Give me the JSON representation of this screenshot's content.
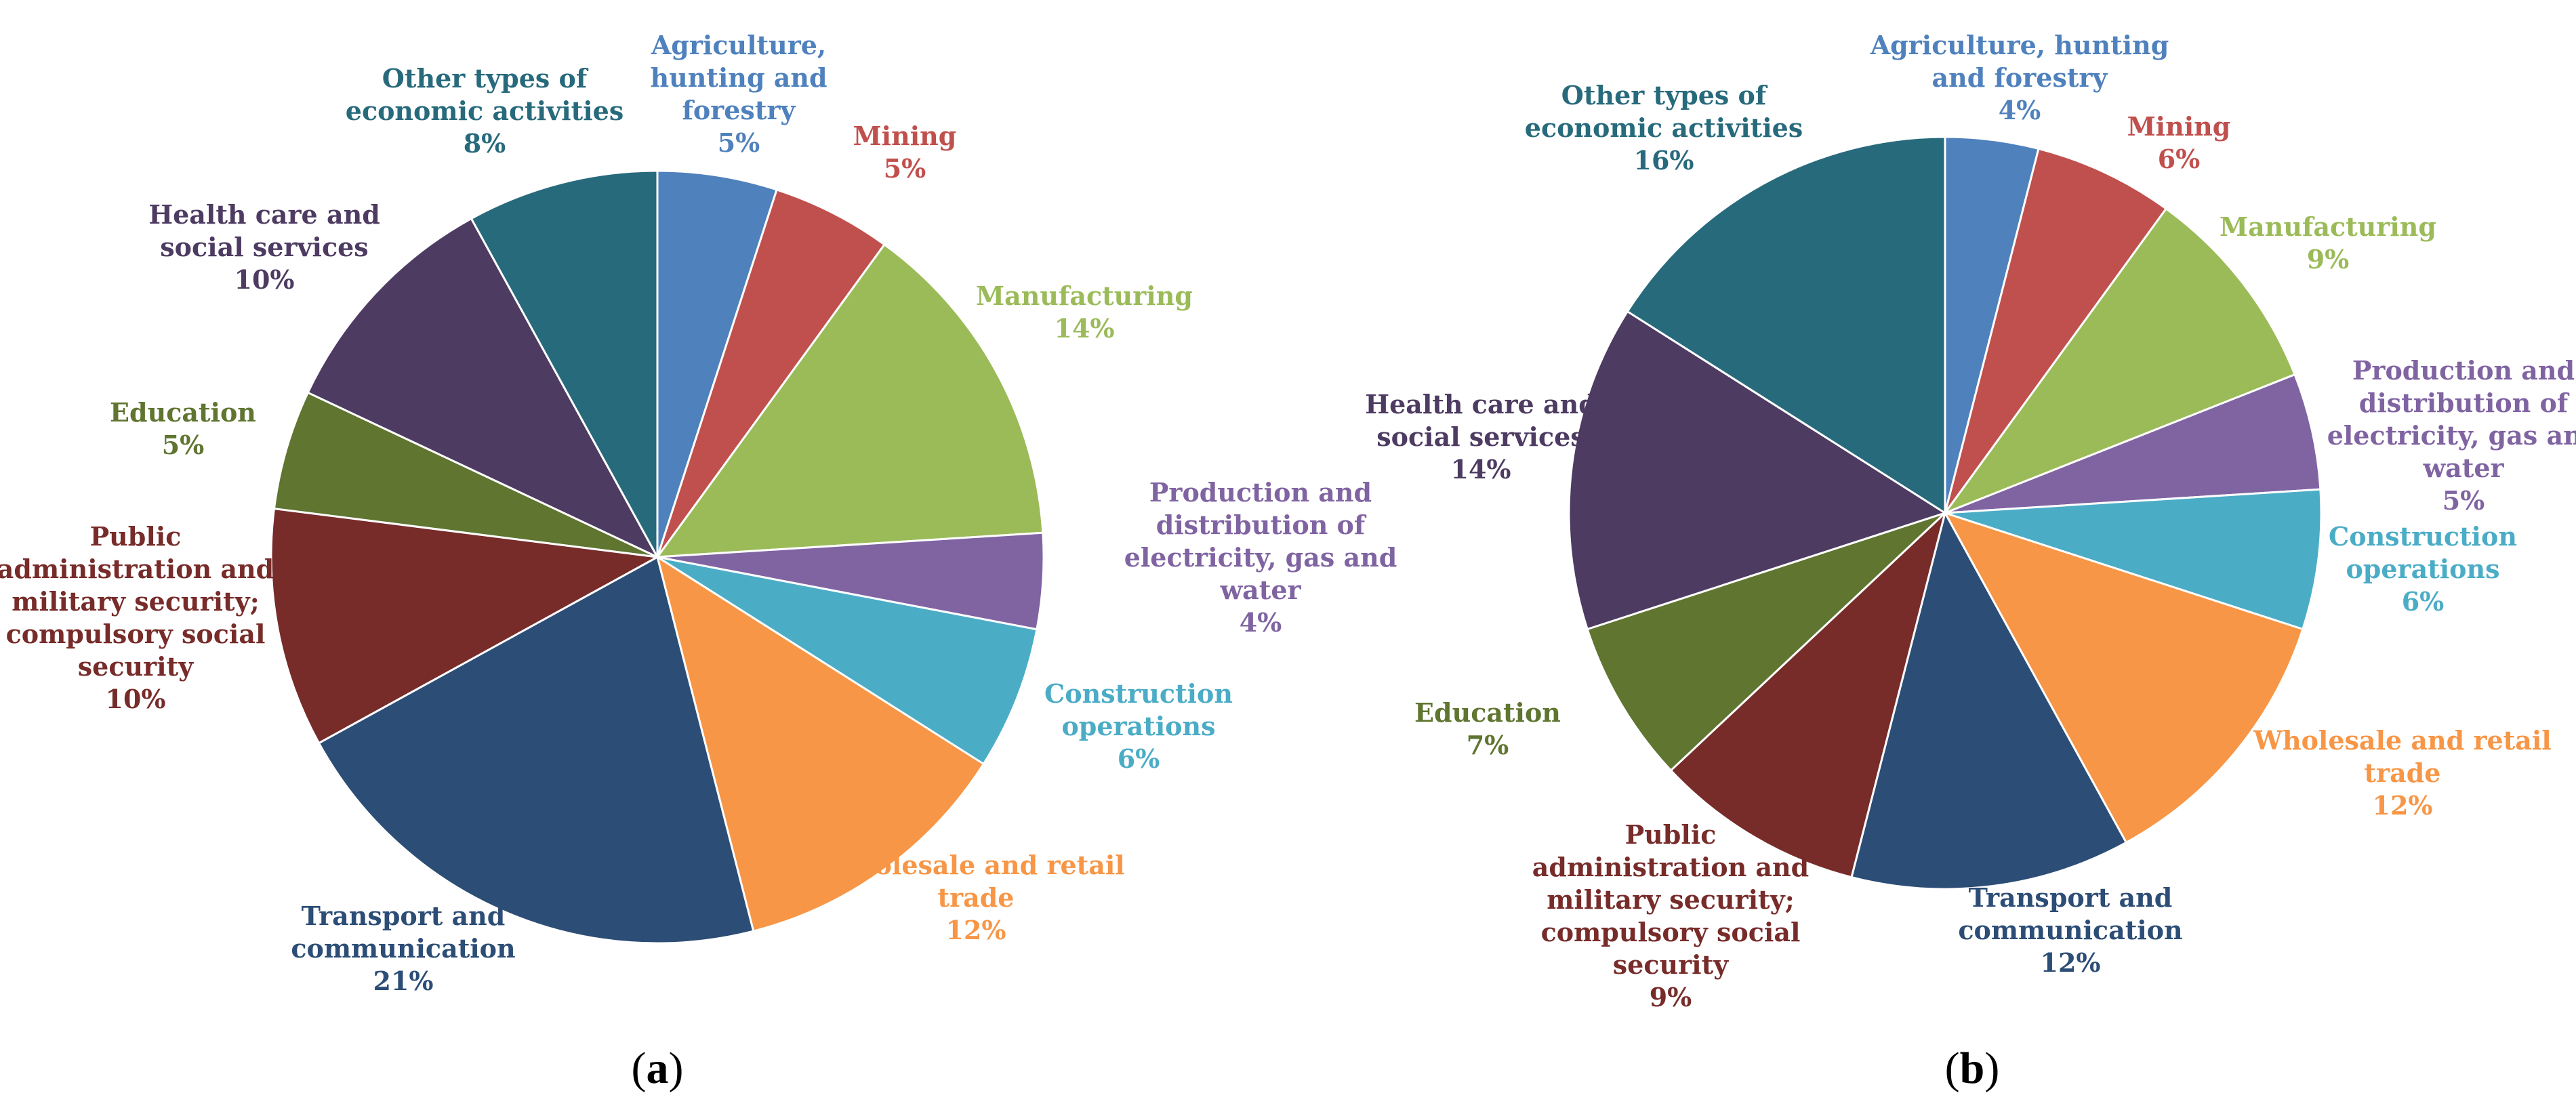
{
  "chart_data": [
    {
      "type": "pie",
      "panel_label": "(a)",
      "start": "12 o'clock",
      "direction": "clockwise",
      "slices": [
        {
          "label": [
            "Agriculture,",
            "hunting and",
            "forestry"
          ],
          "value": 5,
          "value_label": "5%",
          "color": "#4F81BD"
        },
        {
          "label": [
            "Mining"
          ],
          "value": 5,
          "value_label": "5%",
          "color": "#C0504D"
        },
        {
          "label": [
            "Manufacturing"
          ],
          "value": 14,
          "value_label": "14%",
          "color": "#9BBB59"
        },
        {
          "label": [
            "Production and",
            "distribution of",
            "electricity, gas and",
            "water"
          ],
          "value": 4,
          "value_label": "4%",
          "color": "#8064A2"
        },
        {
          "label": [
            "Construction",
            "operations"
          ],
          "value": 6,
          "value_label": "6%",
          "color": "#4BACC6"
        },
        {
          "label": [
            "Wholesale and retail",
            "trade"
          ],
          "value": 12,
          "value_label": "12%",
          "color": "#F79646"
        },
        {
          "label": [
            "Transport and",
            "communication"
          ],
          "value": 21,
          "value_label": "21%",
          "color": "#2C4D75"
        },
        {
          "label": [
            "Public",
            "administration and",
            "military security;",
            "compulsory social",
            "security"
          ],
          "value": 10,
          "value_label": "10%",
          "color": "#772C2A"
        },
        {
          "label": [
            "Education"
          ],
          "value": 5,
          "value_label": "5%",
          "color": "#5F7530"
        },
        {
          "label": [
            "Health care and",
            "social services"
          ],
          "value": 10,
          "value_label": "10%",
          "color": "#4D3B62"
        },
        {
          "label": [
            "Other types of",
            "economic activities"
          ],
          "value": 8,
          "value_label": "8%",
          "color": "#276A7C"
        }
      ]
    },
    {
      "type": "pie",
      "panel_label": "(b)",
      "start": "12 o'clock",
      "direction": "clockwise",
      "slices": [
        {
          "label": [
            "Agriculture, hunting",
            "and forestry"
          ],
          "value": 4,
          "value_label": "4%",
          "color": "#4F81BD"
        },
        {
          "label": [
            "Mining"
          ],
          "value": 6,
          "value_label": "6%",
          "color": "#C0504D"
        },
        {
          "label": [
            "Manufacturing"
          ],
          "value": 9,
          "value_label": "9%",
          "color": "#9BBB59"
        },
        {
          "label": [
            "Production and",
            "distribution of",
            "electricity, gas and",
            "water"
          ],
          "value": 5,
          "value_label": "5%",
          "color": "#8064A2"
        },
        {
          "label": [
            "Construction",
            "operations"
          ],
          "value": 6,
          "value_label": "6%",
          "color": "#4BACC6"
        },
        {
          "label": [
            "Wholesale and retail",
            "trade"
          ],
          "value": 12,
          "value_label": "12%",
          "color": "#F79646"
        },
        {
          "label": [
            "Transport and",
            "communication"
          ],
          "value": 12,
          "value_label": "12%",
          "color": "#2C4D75"
        },
        {
          "label": [
            "Public",
            "administration and",
            "military security;",
            "compulsory social",
            "security"
          ],
          "value": 9,
          "value_label": "9%",
          "color": "#772C2A"
        },
        {
          "label": [
            "Education"
          ],
          "value": 7,
          "value_label": "7%",
          "color": "#5F7530"
        },
        {
          "label": [
            "Health care and",
            "social services"
          ],
          "value": 14,
          "value_label": "14%",
          "color": "#4D3B62"
        },
        {
          "label": [
            "Other types of",
            "economic activities"
          ],
          "value": 16,
          "value_label": "16%",
          "color": "#276A7C"
        }
      ]
    }
  ]
}
